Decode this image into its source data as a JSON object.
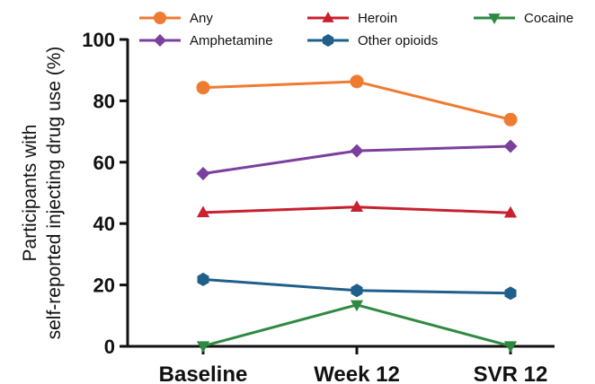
{
  "chart_data": {
    "type": "line",
    "categories": [
      "Baseline",
      "Week 12",
      "SVR 12"
    ],
    "ylabel_line1": "Participants with",
    "ylabel_line2": "self-reported injecting drug use (%)",
    "xlabel": "",
    "title": "",
    "ylim": [
      0,
      100
    ],
    "yticks": [
      0,
      20,
      40,
      60,
      80,
      100
    ],
    "grid": false,
    "legend_position": "top",
    "series": [
      {
        "name": "Any",
        "values": [
          84.3,
          86.3,
          73.9
        ],
        "color": "#ef7b30",
        "marker": "circle"
      },
      {
        "name": "Amphetamine",
        "values": [
          56.3,
          63.7,
          65.2
        ],
        "color": "#7b3f9e",
        "marker": "diamond"
      },
      {
        "name": "Heroin",
        "values": [
          43.6,
          45.4,
          43.5
        ],
        "color": "#c8202f",
        "marker": "triangle-up"
      },
      {
        "name": "Other opioids",
        "values": [
          21.8,
          18.2,
          17.3
        ],
        "color": "#1f5f8b",
        "marker": "hexagon"
      },
      {
        "name": "Cocaine",
        "values": [
          0.1,
          13.5,
          0.1
        ],
        "color": "#2e8a43",
        "marker": "triangle-down"
      }
    ]
  }
}
